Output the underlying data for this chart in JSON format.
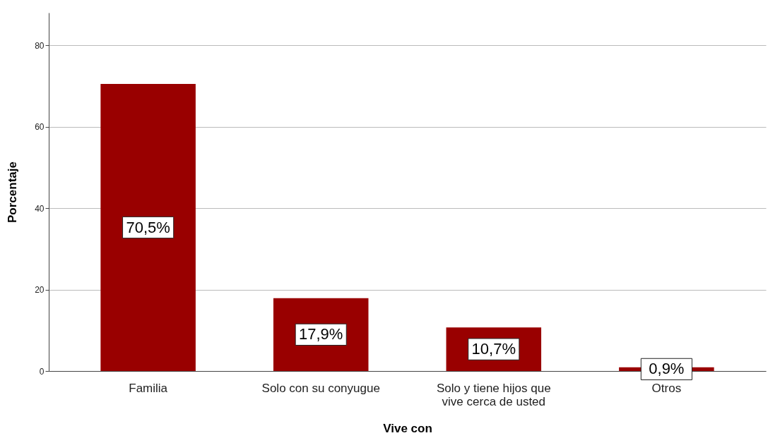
{
  "chart_data": {
    "type": "bar",
    "xlabel": "Vive con",
    "ylabel": "Porcentaje",
    "categories": [
      "Familia",
      "Solo con su conyugue",
      "Solo y tiene hijos que vive cerca de usted",
      "Otros"
    ],
    "values": [
      70.5,
      17.9,
      10.7,
      0.9
    ],
    "value_labels": [
      "70,5%",
      "17,9%",
      "10,7%",
      "0,9%"
    ],
    "color": "#990000",
    "ylim": [
      0,
      88
    ],
    "yticks": [
      0,
      20,
      40,
      60,
      80
    ],
    "grid": "y"
  }
}
